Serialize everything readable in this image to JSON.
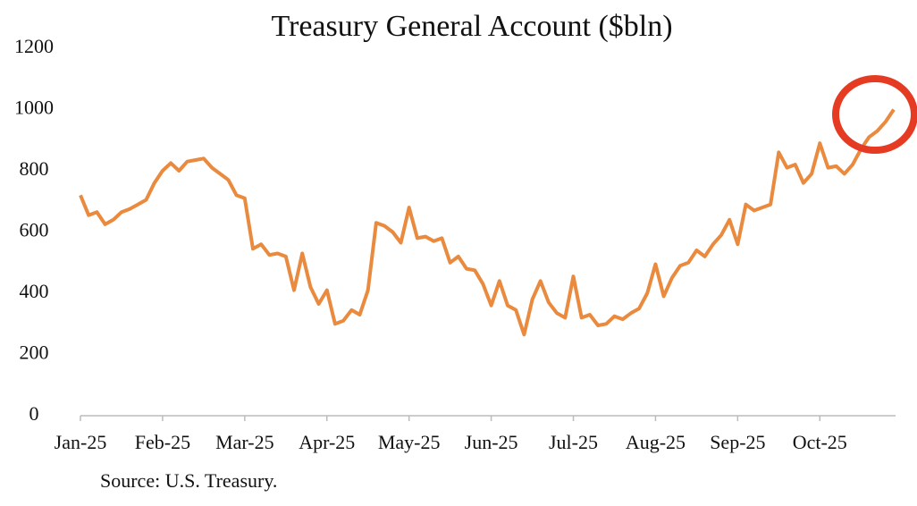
{
  "chart_data": {
    "type": "line",
    "title": "Treasury General Account ($bln)",
    "source": "Source: U.S. Treasury.",
    "series": [
      {
        "name": "Treasury General Account",
        "color": "#e98a3e",
        "values": [
          720,
          655,
          665,
          625,
          640,
          665,
          675,
          690,
          705,
          760,
          800,
          825,
          800,
          830,
          835,
          840,
          810,
          790,
          770,
          720,
          710,
          545,
          560,
          525,
          530,
          520,
          410,
          530,
          420,
          365,
          410,
          300,
          310,
          345,
          330,
          410,
          630,
          620,
          600,
          565,
          680,
          580,
          585,
          570,
          580,
          500,
          520,
          480,
          475,
          430,
          360,
          440,
          360,
          345,
          265,
          380,
          440,
          370,
          335,
          320,
          455,
          320,
          330,
          295,
          300,
          325,
          315,
          335,
          350,
          400,
          495,
          390,
          450,
          490,
          500,
          540,
          520,
          560,
          590,
          640,
          560,
          690,
          670,
          680,
          690,
          860,
          810,
          820,
          760,
          790,
          890,
          810,
          815,
          790,
          820,
          870,
          910,
          930,
          960,
          1000
        ]
      }
    ],
    "xlim": [
      0,
      99
    ],
    "xticks": [
      {
        "value": 0,
        "label": "Jan-25"
      },
      {
        "value": 10,
        "label": "Feb-25"
      },
      {
        "value": 20,
        "label": "Mar-25"
      },
      {
        "value": 30,
        "label": "Apr-25"
      },
      {
        "value": 40,
        "label": "May-25"
      },
      {
        "value": 50,
        "label": "Jun-25"
      },
      {
        "value": 60,
        "label": "Jul-25"
      },
      {
        "value": 70,
        "label": "Aug-25"
      },
      {
        "value": 80,
        "label": "Sep-25"
      },
      {
        "value": 90,
        "label": "Oct-25"
      }
    ],
    "ylim": [
      0,
      1200
    ],
    "yticks": [
      0,
      200,
      400,
      600,
      800,
      1000,
      1200
    ],
    "grid": false
  }
}
